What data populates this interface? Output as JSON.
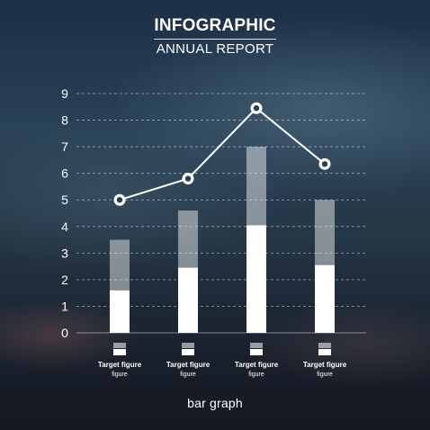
{
  "title": "INFOGRAPHIC",
  "subtitle": "ANNUAL REPORT",
  "caption": "bar graph",
  "colors": {
    "bar_solid": "#ffffff",
    "bar_light": "rgba(255,255,255,0.45)",
    "line": "#ffffff",
    "grid": "rgba(255,255,255,0.45)"
  },
  "chart_data": {
    "type": "bar",
    "title": "",
    "xlabel": "",
    "ylabel": "",
    "ylim": [
      0,
      9
    ],
    "yticks": [
      "0",
      "1",
      "2",
      "3",
      "4",
      "5",
      "6",
      "7",
      "8",
      "9"
    ],
    "grid": true,
    "categories": [
      "Target figure",
      "Target figure",
      "Target figure",
      "Target figure"
    ],
    "category_sublabels": [
      "figure",
      "figure",
      "figure",
      "figure"
    ],
    "series": [
      {
        "type": "bar",
        "part": "lower",
        "values": [
          1.6,
          2.45,
          4.05,
          2.55
        ]
      },
      {
        "type": "bar",
        "part": "total",
        "values": [
          3.5,
          4.6,
          7.0,
          5.0
        ]
      },
      {
        "type": "line",
        "values": [
          5.0,
          5.8,
          8.45,
          6.35
        ]
      }
    ]
  }
}
